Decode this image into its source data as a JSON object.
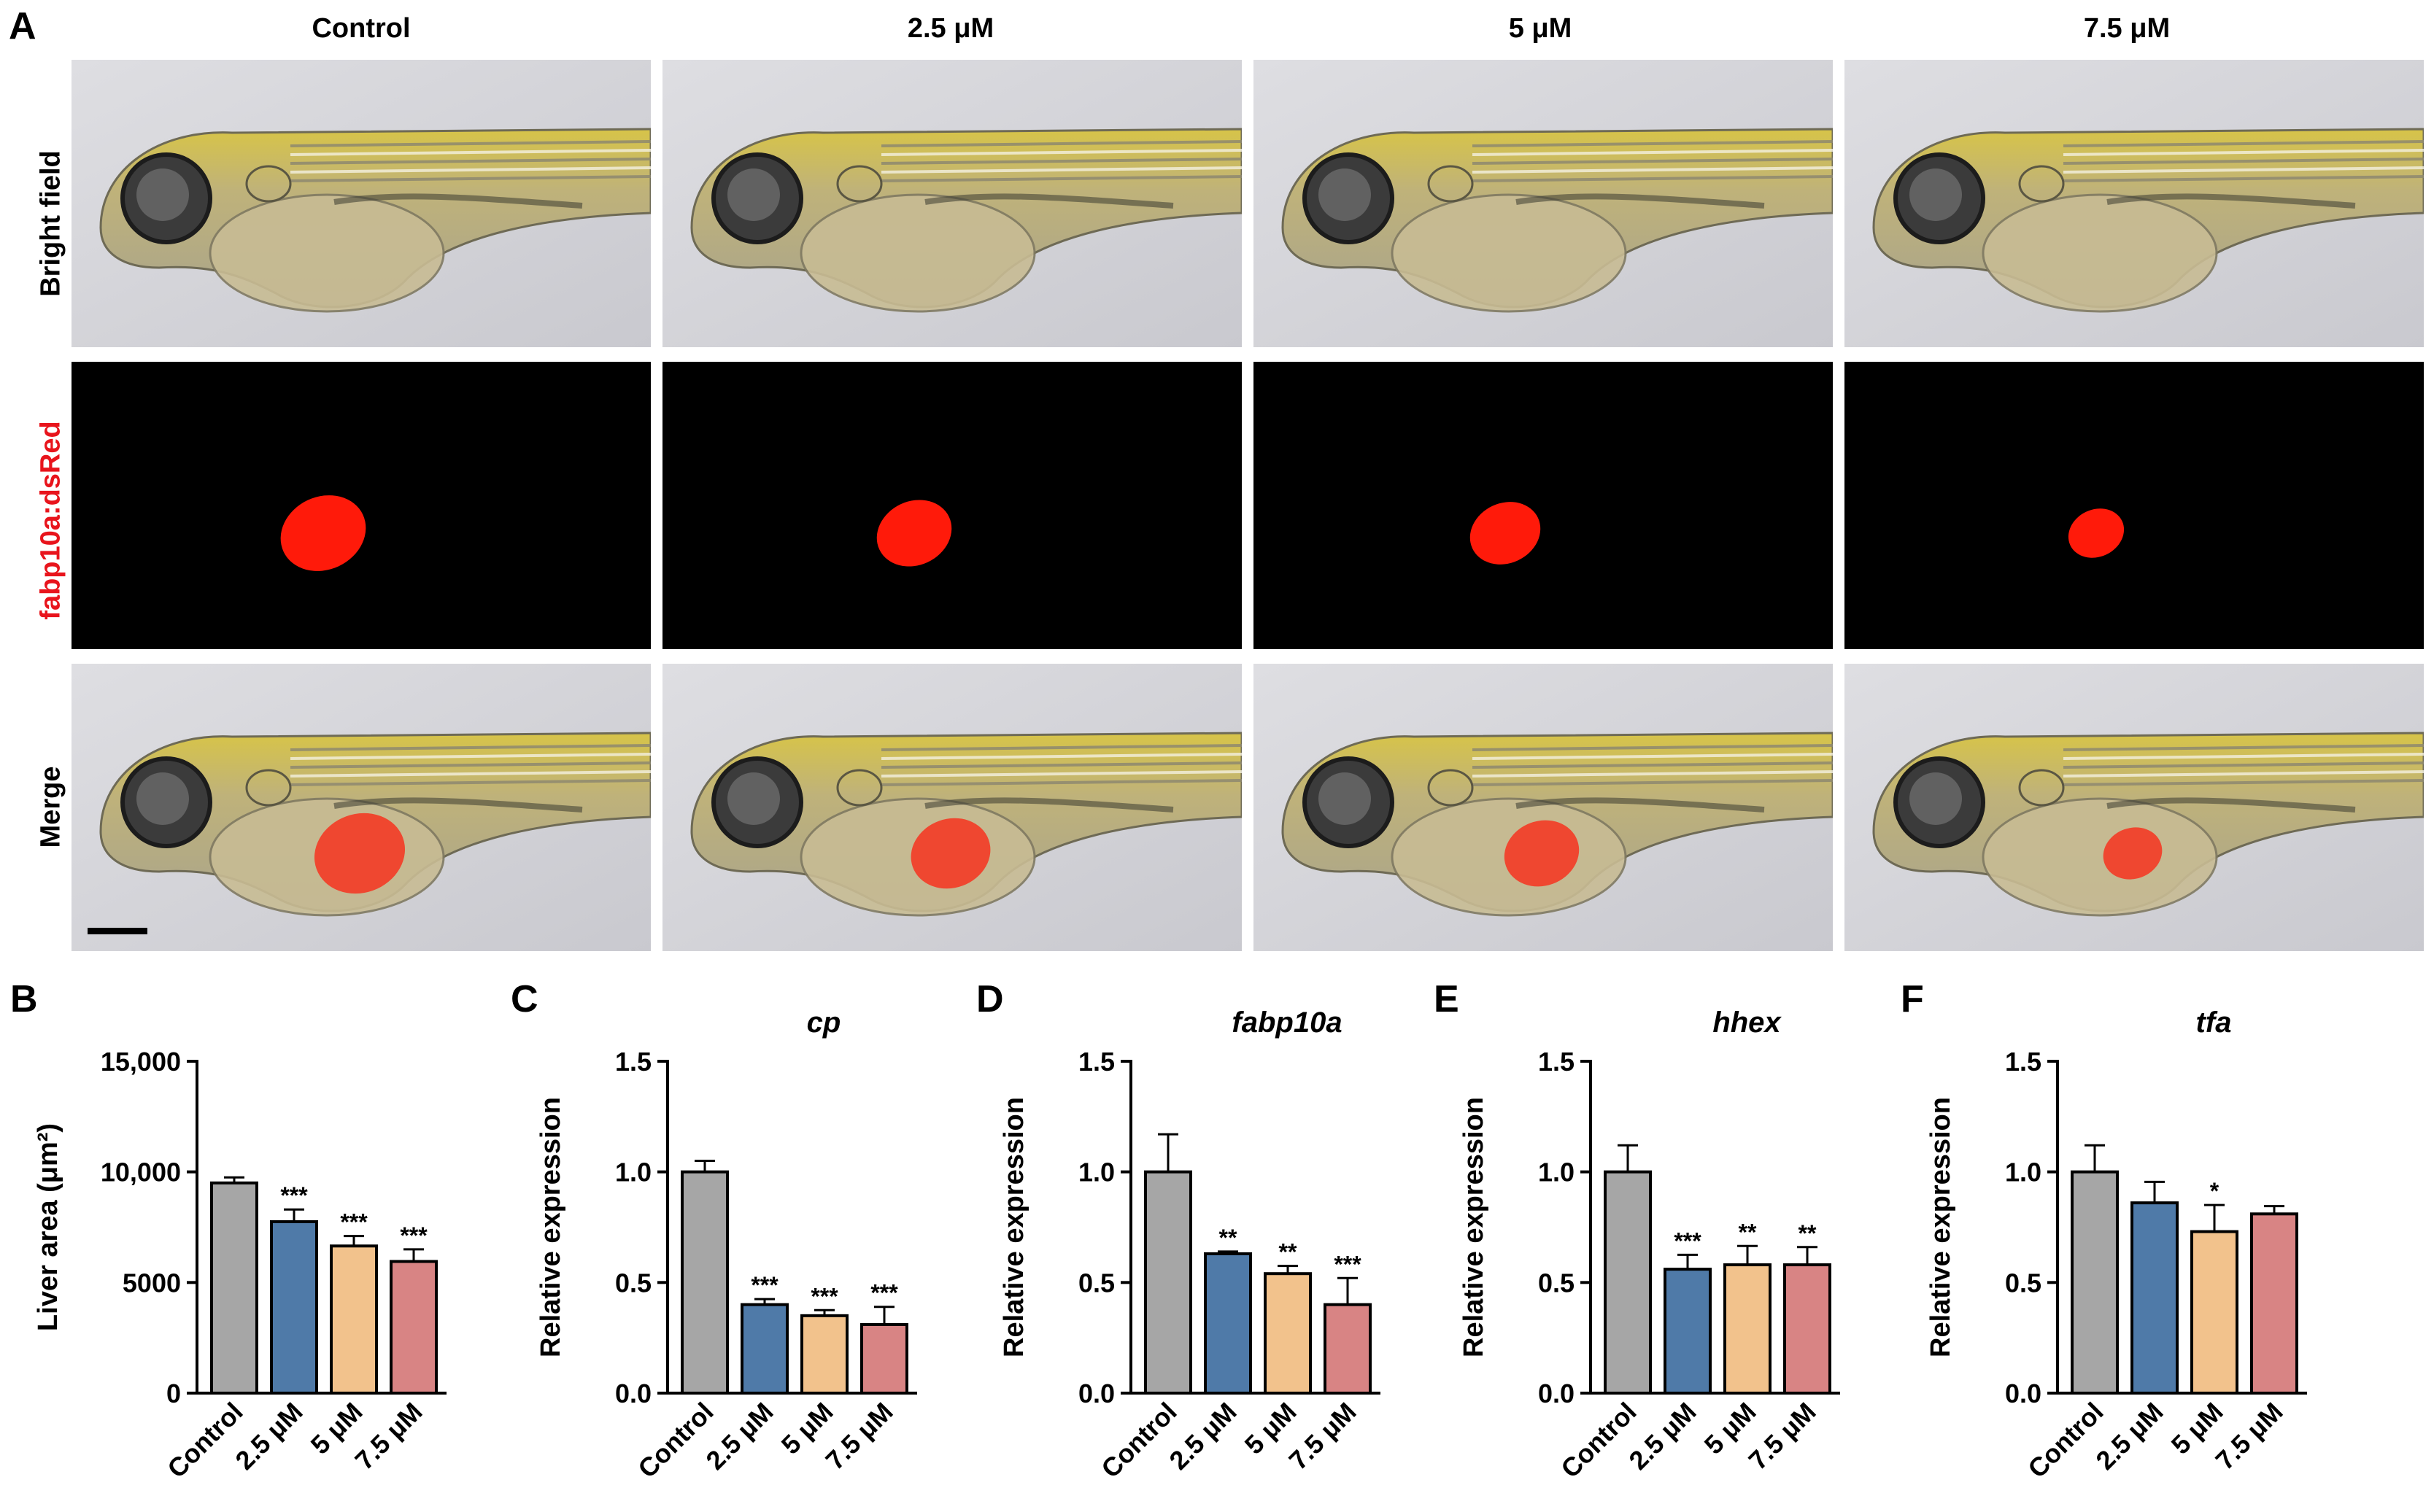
{
  "panels": {
    "A": "A",
    "B": "B",
    "C": "C",
    "D": "D",
    "E": "E",
    "F": "F"
  },
  "columns": [
    "Control",
    "2.5 μM",
    "5 μM",
    "7.5 μM"
  ],
  "rows": [
    "Bright field",
    "fabp10a:dsRed",
    "Merge"
  ],
  "colors": {
    "control": "#a6a6a6",
    "dose_2_5": "#4f7aa8",
    "dose_5": "#f2c28c",
    "dose_7_5": "#d88484",
    "fluorescence": "#ff1a0a",
    "row2_label": "#e8141c"
  },
  "liver_area_fraction": [
    1.0,
    0.86,
    0.8,
    0.6
  ],
  "chart_data": [
    {
      "type": "bar",
      "panel": "B",
      "title": "",
      "categories": [
        "Control",
        "2.5 μM",
        "5 μM",
        "7.5 μM"
      ],
      "values": [
        9500,
        7750,
        6650,
        5950
      ],
      "errors": [
        250,
        550,
        450,
        550
      ],
      "significance": [
        "",
        "***",
        "***",
        "***"
      ],
      "ylabel": "Liver area (μm²)",
      "ylim": [
        0,
        15000
      ],
      "yticks": [
        0,
        5000,
        10000,
        15000
      ],
      "ytick_labels": [
        "0",
        "5000",
        "10,000",
        "15,000"
      ]
    },
    {
      "type": "bar",
      "panel": "C",
      "title": "cp",
      "categories": [
        "Control",
        "2.5 μM",
        "5 μM",
        "7.5 μM"
      ],
      "values": [
        1.0,
        0.4,
        0.35,
        0.31
      ],
      "errors": [
        0.05,
        0.025,
        0.025,
        0.08
      ],
      "significance": [
        "",
        "***",
        "***",
        "***"
      ],
      "ylabel": "Relative expression",
      "ylim": [
        0,
        1.5
      ],
      "yticks": [
        0,
        0.5,
        1.0,
        1.5
      ],
      "ytick_labels": [
        "0.0",
        "0.5",
        "1.0",
        "1.5"
      ]
    },
    {
      "type": "bar",
      "panel": "D",
      "title": "fabp10a",
      "categories": [
        "Control",
        "2.5 μM",
        "5 μM",
        "7.5 μM"
      ],
      "values": [
        1.0,
        0.63,
        0.54,
        0.4
      ],
      "errors": [
        0.17,
        0.01,
        0.035,
        0.12
      ],
      "significance": [
        "",
        "**",
        "**",
        "***"
      ],
      "ylabel": "Relative expression",
      "ylim": [
        0,
        1.5
      ],
      "yticks": [
        0,
        0.5,
        1.0,
        1.5
      ],
      "ytick_labels": [
        "0.0",
        "0.5",
        "1.0",
        "1.5"
      ]
    },
    {
      "type": "bar",
      "panel": "E",
      "title": "hhex",
      "categories": [
        "Control",
        "2.5 μM",
        "5 μM",
        "7.5 μM"
      ],
      "values": [
        1.0,
        0.56,
        0.58,
        0.58
      ],
      "errors": [
        0.12,
        0.065,
        0.085,
        0.08
      ],
      "significance": [
        "",
        "***",
        "**",
        "**"
      ],
      "ylabel": "Relative expression",
      "ylim": [
        0,
        1.5
      ],
      "yticks": [
        0,
        0.5,
        1.0,
        1.5
      ],
      "ytick_labels": [
        "0.0",
        "0.5",
        "1.0",
        "1.5"
      ]
    },
    {
      "type": "bar",
      "panel": "F",
      "title": "tfa",
      "categories": [
        "Control",
        "2.5 μM",
        "5 μM",
        "7.5 μM"
      ],
      "values": [
        1.0,
        0.86,
        0.73,
        0.81
      ],
      "errors": [
        0.12,
        0.095,
        0.12,
        0.035
      ],
      "significance": [
        "",
        "",
        "*",
        ""
      ],
      "ylabel": "Relative expression",
      "ylim": [
        0,
        1.5
      ],
      "yticks": [
        0,
        0.5,
        1.0,
        1.5
      ],
      "ytick_labels": [
        "0.0",
        "0.5",
        "1.0",
        "1.5"
      ]
    }
  ]
}
